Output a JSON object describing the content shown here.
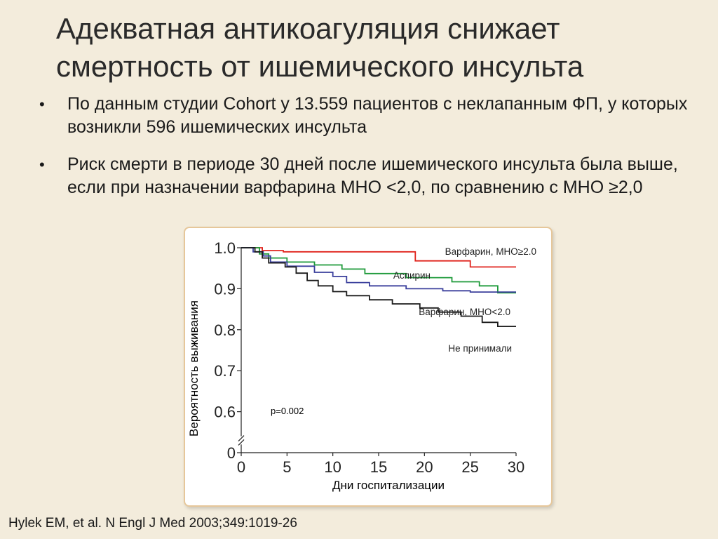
{
  "slide": {
    "title_lines": [
      "Адекватная антикоагуляция снижает",
      "смертность от ишемического инсульта"
    ],
    "bullets": [
      "По данным студии Cohort у 13.559 пациентов с неклапанным ФП, у которых возникли 596 ишемических инсульта",
      "Риск смерти в периоде 30 дней после ишемического инсульта была выше, если при назначении варфарина МНО <2,0, по сравнению с МНО ≥2,0"
    ],
    "bullet_glyph": "•",
    "citation": "Hylek EM, et al. N Engl J Med 2003;349:1019-26"
  },
  "chart_data": {
    "type": "line",
    "xlabel": "Дни госпитализации",
    "ylabel": "Вероятность выживания",
    "x_ticks": [
      0,
      5,
      10,
      15,
      20,
      25,
      30
    ],
    "y_ticks": [
      {
        "value": 1.0,
        "label": "1.0"
      },
      {
        "value": 0.9,
        "label": "0.9"
      },
      {
        "value": 0.8,
        "label": "0.8"
      },
      {
        "value": 0.7,
        "label": "0.7"
      },
      {
        "value": 0.6,
        "label": "0.6"
      },
      {
        "value": 0.5,
        "label": "0"
      }
    ],
    "axis_break": true,
    "xlim": [
      0,
      30
    ],
    "ylim": [
      0.5,
      1.0
    ],
    "annotation": "p=0.002",
    "series": [
      {
        "name": "Варфарин, МНО≥2.0",
        "color": "#e0231c",
        "points": [
          [
            0,
            1.0
          ],
          [
            2.3,
            1.0
          ],
          [
            2.3,
            0.993
          ],
          [
            4.6,
            0.993
          ],
          [
            4.6,
            0.99
          ],
          [
            19,
            0.99
          ],
          [
            19,
            0.968
          ],
          [
            25,
            0.968
          ],
          [
            25,
            0.953
          ],
          [
            30,
            0.953
          ]
        ]
      },
      {
        "name": "Аспирин",
        "color": "#1e9a3a",
        "points": [
          [
            0,
            1.0
          ],
          [
            2,
            1.0
          ],
          [
            2,
            0.985
          ],
          [
            3,
            0.985
          ],
          [
            3,
            0.975
          ],
          [
            5,
            0.975
          ],
          [
            5,
            0.965
          ],
          [
            8,
            0.965
          ],
          [
            8,
            0.958
          ],
          [
            11,
            0.958
          ],
          [
            11,
            0.948
          ],
          [
            13.5,
            0.948
          ],
          [
            13.5,
            0.937
          ],
          [
            18,
            0.937
          ],
          [
            18,
            0.927
          ],
          [
            23,
            0.927
          ],
          [
            23,
            0.917
          ],
          [
            26,
            0.917
          ],
          [
            26,
            0.907
          ],
          [
            28,
            0.907
          ],
          [
            28,
            0.89
          ],
          [
            30,
            0.89
          ]
        ]
      },
      {
        "name": "Варфарин, МНО<2.0",
        "color": "#3a3f9c",
        "points": [
          [
            0,
            1.0
          ],
          [
            1.3,
            1.0
          ],
          [
            1.3,
            0.99
          ],
          [
            2.4,
            0.99
          ],
          [
            2.4,
            0.98
          ],
          [
            3.2,
            0.98
          ],
          [
            3.2,
            0.965
          ],
          [
            5,
            0.965
          ],
          [
            5,
            0.955
          ],
          [
            8,
            0.955
          ],
          [
            8,
            0.94
          ],
          [
            10,
            0.94
          ],
          [
            10,
            0.93
          ],
          [
            11.5,
            0.93
          ],
          [
            11.5,
            0.915
          ],
          [
            14,
            0.915
          ],
          [
            14,
            0.907
          ],
          [
            18,
            0.907
          ],
          [
            18,
            0.9
          ],
          [
            22,
            0.9
          ],
          [
            22,
            0.895
          ],
          [
            25,
            0.895
          ],
          [
            25,
            0.892
          ],
          [
            30,
            0.892
          ]
        ]
      },
      {
        "name": "Не принимали",
        "color": "#1b1b1b",
        "points": [
          [
            0,
            1.0
          ],
          [
            1.5,
            1.0
          ],
          [
            1.5,
            0.99
          ],
          [
            2.3,
            0.99
          ],
          [
            2.3,
            0.975
          ],
          [
            3,
            0.975
          ],
          [
            3,
            0.963
          ],
          [
            4.8,
            0.963
          ],
          [
            4.8,
            0.953
          ],
          [
            6,
            0.953
          ],
          [
            6,
            0.938
          ],
          [
            7.2,
            0.938
          ],
          [
            7.2,
            0.92
          ],
          [
            8.4,
            0.92
          ],
          [
            8.4,
            0.907
          ],
          [
            10,
            0.907
          ],
          [
            10,
            0.893
          ],
          [
            11.5,
            0.893
          ],
          [
            11.5,
            0.883
          ],
          [
            14,
            0.883
          ],
          [
            14,
            0.873
          ],
          [
            16.5,
            0.873
          ],
          [
            16.5,
            0.863
          ],
          [
            19.5,
            0.863
          ],
          [
            19.5,
            0.853
          ],
          [
            21.5,
            0.853
          ],
          [
            21.5,
            0.843
          ],
          [
            24,
            0.843
          ],
          [
            24,
            0.833
          ],
          [
            26.3,
            0.833
          ],
          [
            26.3,
            0.818
          ],
          [
            28,
            0.818
          ],
          [
            28,
            0.808
          ],
          [
            30,
            0.808
          ]
        ]
      }
    ],
    "series_labels": [
      "Варфарин, МНО≥2.0",
      "Аспирин",
      "Варфарин,  МНО<2.0",
      "Не принимали"
    ]
  }
}
